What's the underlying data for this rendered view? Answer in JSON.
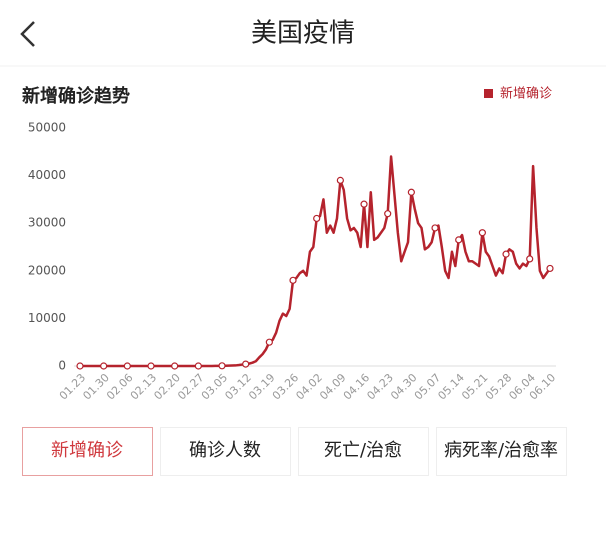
{
  "header": {
    "title": "美国疫情"
  },
  "chart_data": {
    "type": "line",
    "title": "新增确诊趋势",
    "categories": [
      "01.23",
      null,
      null,
      null,
      null,
      null,
      null,
      "01.30",
      null,
      null,
      null,
      null,
      null,
      null,
      "02.06",
      null,
      null,
      null,
      null,
      null,
      null,
      "02.13",
      null,
      null,
      null,
      null,
      null,
      null,
      "02.20",
      null,
      null,
      null,
      null,
      null,
      null,
      "02.27",
      null,
      null,
      null,
      null,
      null,
      null,
      "03.05",
      null,
      null,
      null,
      null,
      null,
      null,
      "03.12",
      null,
      null,
      null,
      null,
      null,
      null,
      "03.19",
      null,
      null,
      null,
      null,
      null,
      null,
      "03.26",
      null,
      null,
      null,
      null,
      null,
      null,
      "04.02",
      null,
      null,
      null,
      null,
      null,
      null,
      "04.09",
      null,
      null,
      null,
      null,
      null,
      null,
      "04.16",
      null,
      null,
      null,
      null,
      null,
      null,
      "04.23",
      null,
      null,
      null,
      null,
      null,
      null,
      "04.30",
      null,
      null,
      null,
      null,
      null,
      null,
      "05.07",
      null,
      null,
      null,
      null,
      null,
      null,
      "05.14",
      null,
      null,
      null,
      null,
      null,
      null,
      "05.21",
      null,
      null,
      null,
      null,
      null,
      null,
      "05.28",
      null,
      null,
      null,
      null,
      null,
      null,
      "06.04",
      null,
      null,
      null,
      null,
      null,
      "06.10"
    ],
    "series": [
      {
        "name": "新增确诊",
        "color": "#b5232d",
        "values": [
          0,
          0,
          0,
          0,
          0,
          0,
          0,
          0,
          0,
          0,
          0,
          0,
          0,
          0,
          0,
          0,
          0,
          0,
          0,
          0,
          0,
          0,
          0,
          0,
          0,
          0,
          0,
          0,
          0,
          0,
          0,
          0,
          0,
          0,
          0,
          0,
          0,
          0,
          0,
          0,
          20,
          20,
          40,
          60,
          80,
          100,
          120,
          200,
          300,
          400,
          500,
          700,
          1000,
          1800,
          2500,
          3500,
          5000,
          5500,
          7000,
          9500,
          11000,
          10500,
          12000,
          18000,
          18500,
          19500,
          20000,
          19000,
          24000,
          25000,
          31000,
          31500,
          35000,
          28000,
          29500,
          28000,
          31000,
          39000,
          37000,
          31000,
          28500,
          29000,
          28000,
          25000,
          34000,
          25000,
          36500,
          26500,
          27000,
          28000,
          29000,
          32000,
          44000,
          36000,
          28000,
          22000,
          24000,
          26000,
          36500,
          33000,
          30000,
          29000,
          24500,
          25000,
          26000,
          29000,
          29500,
          25000,
          20000,
          18500,
          24000,
          21000,
          26500,
          27500,
          24000,
          22000,
          22000,
          21500,
          21000,
          28000,
          24000,
          23000,
          21000,
          19000,
          20500,
          19500,
          23500,
          24500,
          24000,
          21500,
          20500,
          21500,
          21000,
          22500,
          42000,
          29000,
          20000,
          18500,
          19500,
          20500
        ]
      }
    ],
    "ylim": [
      0,
      50000
    ],
    "yticks": [
      0,
      10000,
      20000,
      30000,
      40000,
      50000
    ],
    "grid": false,
    "legend": "top-right"
  },
  "tabs": [
    "新增确诊",
    "确诊人数",
    "死亡/治愈",
    "病死率/治愈率"
  ]
}
